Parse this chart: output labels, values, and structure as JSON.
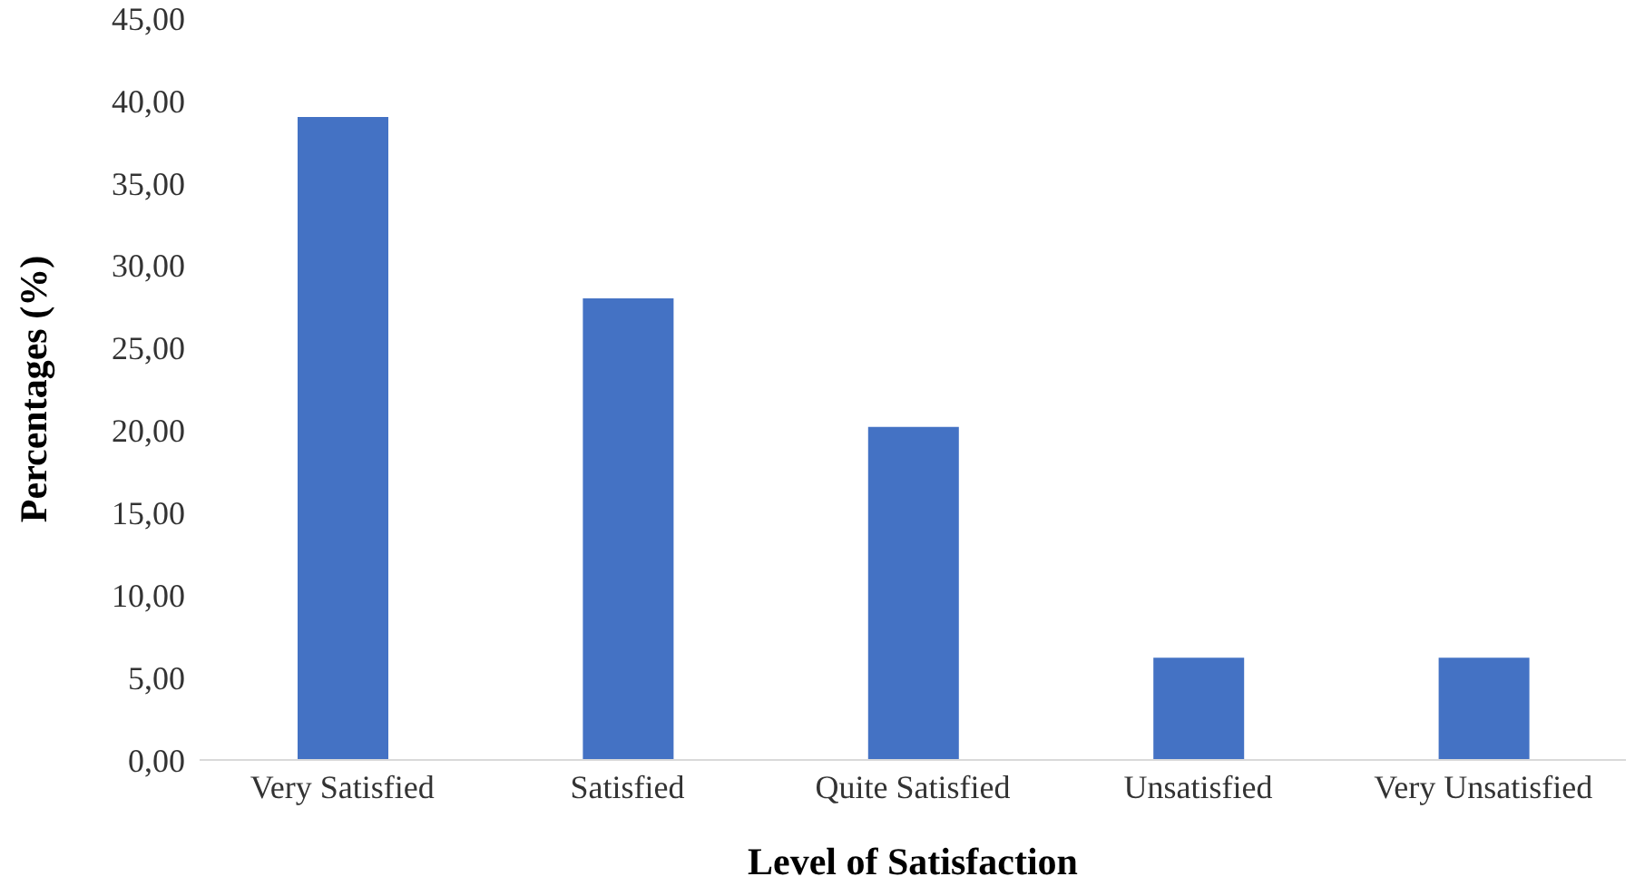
{
  "chart_data": {
    "type": "bar",
    "xlabel": "Level of Satisfaction",
    "ylabel": "Percentages (%)",
    "categories": [
      "Very Satisfied",
      "Satisfied",
      "Quite Satisfied",
      "Unsatisfied",
      "Very Unsatisfied"
    ],
    "values": [
      39.0,
      28.0,
      20.2,
      6.2,
      6.2
    ],
    "color": "#4472c4",
    "ylim": [
      0,
      45
    ],
    "yticks": [
      {
        "value": 0,
        "label": "0,00"
      },
      {
        "value": 5,
        "label": "5,00"
      },
      {
        "value": 10,
        "label": "10,00"
      },
      {
        "value": 15,
        "label": "15,00"
      },
      {
        "value": 20,
        "label": "20,00"
      },
      {
        "value": 25,
        "label": "25,00"
      },
      {
        "value": 30,
        "label": "30,00"
      },
      {
        "value": 35,
        "label": "35,00"
      },
      {
        "value": 40,
        "label": "40,00"
      },
      {
        "value": 45,
        "label": "45,00"
      }
    ],
    "grid": false,
    "legend": false
  }
}
